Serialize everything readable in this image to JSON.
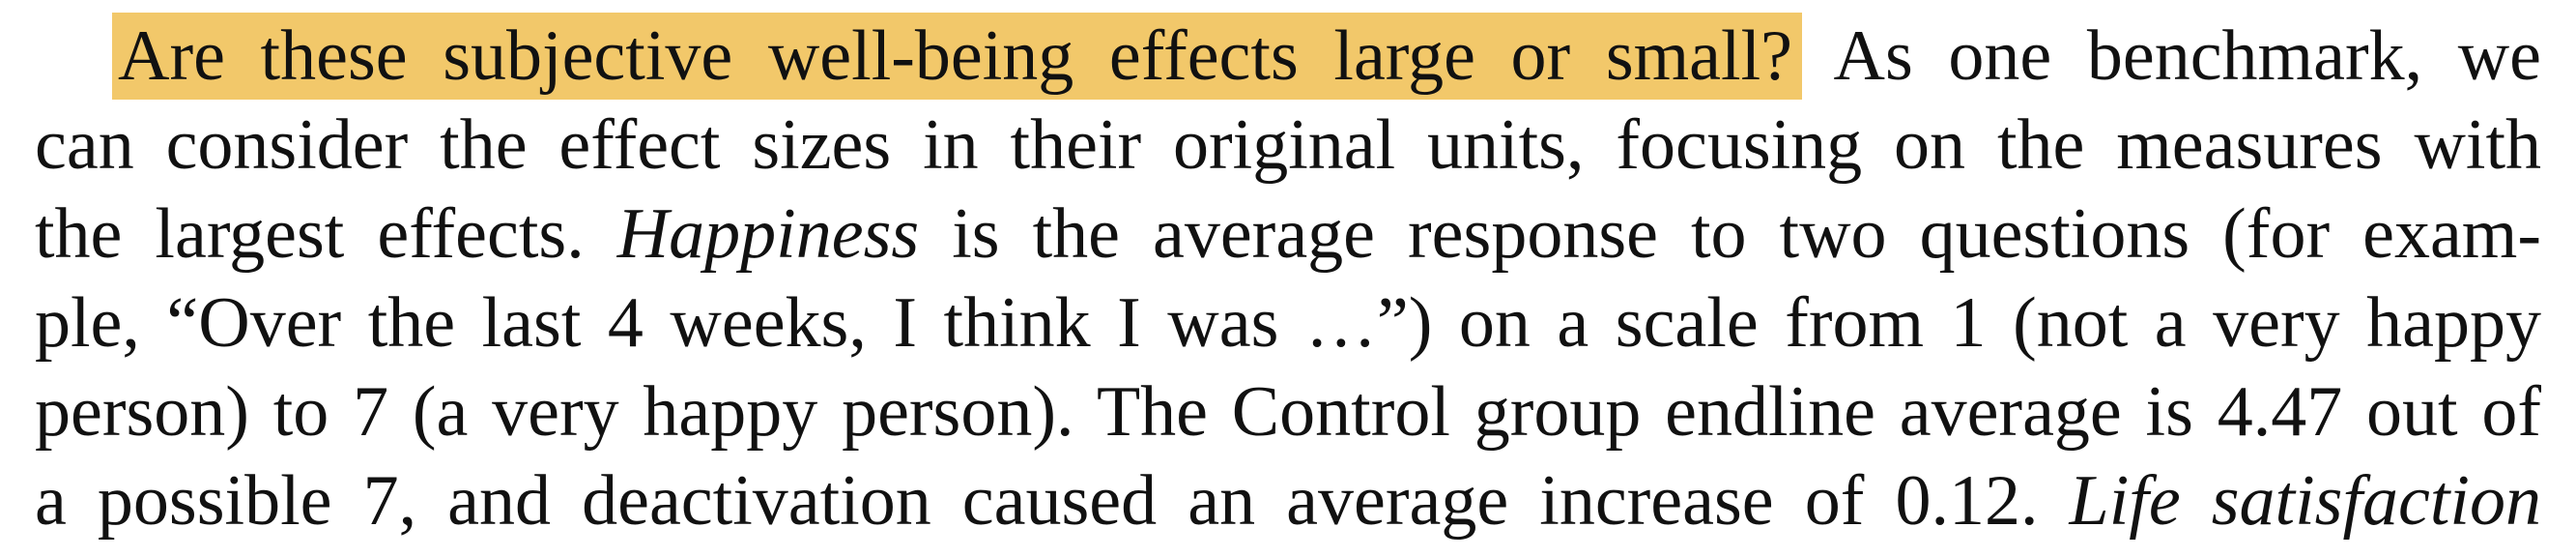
{
  "paragraph": {
    "highlight": "Are these subjective well-being effects large or small?",
    "line1_rest": " As one benchmark, we",
    "line2": "can consider the effect sizes in their original units, focusing on the measures with",
    "line3_a": "the largest effects. ",
    "line3_em": "Happiness",
    "line3_b": " is the average response to two questions (for exam-",
    "line4": "ple, “Over the last 4 weeks, I think I was …”) on a scale from 1 (not a very happy",
    "line5": "person) to 7 (a very happy person). The Control group endline average is 4.47 out of",
    "line6_a": "a possible 7, and deactivation caused an average increase of 0.12. ",
    "line6_em": "Life satisfaction"
  },
  "colors": {
    "highlight": "#F2C86A",
    "text": "#111111",
    "background": "#FFFFFF"
  }
}
